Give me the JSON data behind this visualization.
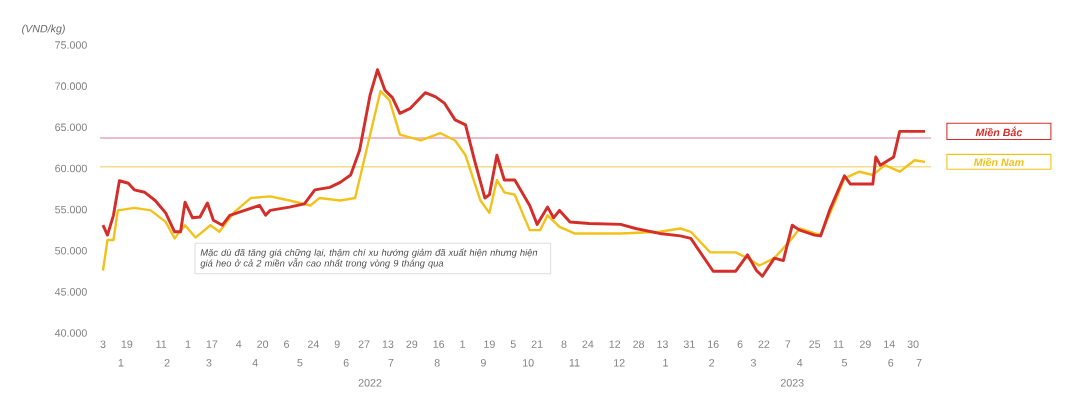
{
  "chart_data": {
    "type": "line",
    "ylabel": "(VND/kg)",
    "xlim": [
      "2022-01-01",
      "2023-07-12"
    ],
    "ylim": [
      40000,
      75000
    ],
    "yticks": [
      {
        "value": 40000,
        "label": "40.000"
      },
      {
        "value": 45000,
        "label": "45.000"
      },
      {
        "value": 50000,
        "label": "50.000"
      },
      {
        "value": 55000,
        "label": "55.000"
      },
      {
        "value": 60000,
        "label": "60.000"
      },
      {
        "value": 65000,
        "label": "65.000"
      },
      {
        "value": 70000,
        "label": "70.000"
      },
      {
        "value": 75000,
        "label": "75.000"
      }
    ],
    "xticks": [
      {
        "value": "2022-01-03",
        "label": "3"
      },
      {
        "value": "2022-01-19",
        "label": "19"
      },
      {
        "value": "2022-02-11",
        "label": "11"
      },
      {
        "value": "2022-03-01",
        "label": "1"
      },
      {
        "value": "2022-03-17",
        "label": "17"
      },
      {
        "value": "2022-04-04",
        "label": "4"
      },
      {
        "value": "2022-04-20",
        "label": "20"
      },
      {
        "value": "2022-05-06",
        "label": "6"
      },
      {
        "value": "2022-05-24",
        "label": "24"
      },
      {
        "value": "2022-06-09",
        "label": "9"
      },
      {
        "value": "2022-06-27",
        "label": "27"
      },
      {
        "value": "2022-07-13",
        "label": "13"
      },
      {
        "value": "2022-07-29",
        "label": "29"
      },
      {
        "value": "2022-08-16",
        "label": "16"
      },
      {
        "value": "2022-09-01",
        "label": "1"
      },
      {
        "value": "2022-09-19",
        "label": "19"
      },
      {
        "value": "2022-10-05",
        "label": "5"
      },
      {
        "value": "2022-10-21",
        "label": "21"
      },
      {
        "value": "2022-11-08",
        "label": "8"
      },
      {
        "value": "2022-11-24",
        "label": "24"
      },
      {
        "value": "2022-12-12",
        "label": "12"
      },
      {
        "value": "2022-12-28",
        "label": "28"
      },
      {
        "value": "2023-01-13",
        "label": "13"
      },
      {
        "value": "2023-01-31",
        "label": "31"
      },
      {
        "value": "2023-02-16",
        "label": "16"
      },
      {
        "value": "2023-03-06",
        "label": "6"
      },
      {
        "value": "2023-03-22",
        "label": "22"
      },
      {
        "value": "2023-04-07",
        "label": "7"
      },
      {
        "value": "2023-04-25",
        "label": "25"
      },
      {
        "value": "2023-05-11",
        "label": "11"
      },
      {
        "value": "2023-05-29",
        "label": "29"
      },
      {
        "value": "2023-06-14",
        "label": "14"
      },
      {
        "value": "2023-06-30",
        "label": "30"
      }
    ],
    "x2lim": [
      "2022-01-01",
      "2023-07-12"
    ],
    "x2ticks": [
      {
        "value": "2022-01-15",
        "label": "1"
      },
      {
        "value": "2022-02-15",
        "label": "2"
      },
      {
        "value": "2022-03-15",
        "label": "3"
      },
      {
        "value": "2022-04-15",
        "label": "4"
      },
      {
        "value": "2022-05-15",
        "label": "5"
      },
      {
        "value": "2022-06-15",
        "label": "6"
      },
      {
        "value": "2022-07-15",
        "label": "7"
      },
      {
        "value": "2022-08-15",
        "label": "8"
      },
      {
        "value": "2022-09-15",
        "label": "9"
      },
      {
        "value": "2022-10-15",
        "label": "10"
      },
      {
        "value": "2022-11-15",
        "label": "11"
      },
      {
        "value": "2022-12-15",
        "label": "12"
      },
      {
        "value": "2023-01-15",
        "label": "1"
      },
      {
        "value": "2023-02-15",
        "label": "2"
      },
      {
        "value": "2023-03-15",
        "label": "3"
      },
      {
        "value": "2023-04-15",
        "label": "4"
      },
      {
        "value": "2023-05-15",
        "label": "5"
      },
      {
        "value": "2023-06-15",
        "label": "6"
      },
      {
        "value": "2023-07-04",
        "label": "7"
      }
    ],
    "ref_lines": [
      {
        "axis": "y",
        "value": 63700,
        "color": "#e8a6b8"
      },
      {
        "axis": "y",
        "value": 60200,
        "color": "#f3dc8c"
      }
    ],
    "annotations": [
      "Mặc dù đã tăng giá chững lại, thậm chí xu hướng giảm đã xuất hiện nhưng hiện giá heo ở cả 2 miền vẫn cao nhất trong vòng 9 tháng qua",
      "2022",
      "2023"
    ],
    "series": [
      {
        "name": "Miền Bắc",
        "color": "#d42e2a",
        "x": [
          "2022-01-03",
          "2022-01-06",
          "2022-01-10",
          "2022-01-14",
          "2022-01-20",
          "2022-01-24",
          "2022-01-31",
          "2022-02-07",
          "2022-02-14",
          "2022-02-20",
          "2022-02-24",
          "2022-02-27",
          "2022-03-04",
          "2022-03-09",
          "2022-03-14",
          "2022-03-18",
          "2022-03-24",
          "2022-03-29",
          "2022-04-08",
          "2022-04-18",
          "2022-04-22",
          "2022-04-25",
          "2022-05-08",
          "2022-05-18",
          "2022-05-25",
          "2022-06-04",
          "2022-06-11",
          "2022-06-18",
          "2022-06-24",
          "2022-07-01",
          "2022-07-06",
          "2022-07-11",
          "2022-07-16",
          "2022-07-21",
          "2022-07-28",
          "2022-08-07",
          "2022-08-14",
          "2022-08-20",
          "2022-08-27",
          "2022-09-03",
          "2022-09-09",
          "2022-09-16",
          "2022-09-19",
          "2022-09-24",
          "2022-09-29",
          "2022-10-06",
          "2022-10-16",
          "2022-10-21",
          "2022-10-28",
          "2022-11-01",
          "2022-11-05",
          "2022-11-12",
          "2022-11-25",
          "2022-12-16",
          "2022-12-26",
          "2023-01-11",
          "2023-01-25",
          "2023-02-01",
          "2023-02-16",
          "2023-03-03",
          "2023-03-11",
          "2023-03-17",
          "2023-03-21",
          "2023-03-29",
          "2023-04-04",
          "2023-04-10",
          "2023-04-15",
          "2023-04-25",
          "2023-04-29",
          "2023-05-05",
          "2023-05-15",
          "2023-05-19",
          "2023-06-03",
          "2023-06-05",
          "2023-06-08",
          "2023-06-17",
          "2023-06-21",
          "2023-07-08"
        ],
        "values": [
          53100,
          51900,
          54300,
          58500,
          58200,
          57400,
          57100,
          56100,
          54600,
          52300,
          52300,
          55900,
          54000,
          54100,
          55800,
          53700,
          53100,
          54300,
          54900,
          55500,
          54300,
          54900,
          55300,
          55700,
          57400,
          57700,
          58300,
          59200,
          62200,
          68900,
          72000,
          69500,
          68600,
          66700,
          67300,
          69200,
          68700,
          67900,
          65900,
          65300,
          61000,
          56400,
          56800,
          61600,
          58600,
          58600,
          55500,
          53200,
          55300,
          54000,
          54900,
          53500,
          53300,
          53200,
          52700,
          52100,
          51800,
          51500,
          47500,
          47500,
          49500,
          47600,
          46900,
          49100,
          48800,
          53100,
          52500,
          51900,
          51800,
          54900,
          59100,
          58100,
          58100,
          61400,
          60400,
          61400,
          64500,
          64500
        ]
      },
      {
        "name": "Miền Nam",
        "color": "#f2c21a",
        "x": [
          "2022-01-03",
          "2022-01-06",
          "2022-01-10",
          "2022-01-13",
          "2022-01-24",
          "2022-02-04",
          "2022-02-14",
          "2022-02-20",
          "2022-02-27",
          "2022-03-06",
          "2022-03-16",
          "2022-03-22",
          "2022-04-01",
          "2022-04-12",
          "2022-04-25",
          "2022-05-08",
          "2022-05-22",
          "2022-05-28",
          "2022-06-11",
          "2022-06-21",
          "2022-07-08",
          "2022-07-14",
          "2022-07-21",
          "2022-08-04",
          "2022-08-17",
          "2022-08-27",
          "2022-09-03",
          "2022-09-13",
          "2022-09-19",
          "2022-09-24",
          "2022-09-29",
          "2022-10-06",
          "2022-10-16",
          "2022-10-23",
          "2022-10-28",
          "2022-11-05",
          "2022-11-15",
          "2022-12-16",
          "2023-01-11",
          "2023-01-25",
          "2023-02-01",
          "2023-02-14",
          "2023-03-03",
          "2023-03-11",
          "2023-03-19",
          "2023-03-29",
          "2023-04-09",
          "2023-04-15",
          "2023-04-29",
          "2023-05-09",
          "2023-05-15",
          "2023-05-25",
          "2023-06-03",
          "2023-06-11",
          "2023-06-21",
          "2023-07-01",
          "2023-07-08"
        ],
        "values": [
          47600,
          51300,
          51300,
          54900,
          55200,
          54900,
          53500,
          51500,
          53100,
          51600,
          53100,
          52300,
          54700,
          56400,
          56600,
          56100,
          55500,
          56400,
          56100,
          56400,
          69400,
          68300,
          64100,
          63400,
          64300,
          63400,
          61600,
          56100,
          54600,
          58600,
          57100,
          56800,
          52500,
          52500,
          54300,
          52900,
          52100,
          52100,
          52300,
          52700,
          52300,
          49800,
          49800,
          49100,
          48200,
          49100,
          51300,
          52700,
          51900,
          56100,
          58800,
          59600,
          59200,
          60400,
          59600,
          61000,
          60800
        ]
      }
    ]
  }
}
